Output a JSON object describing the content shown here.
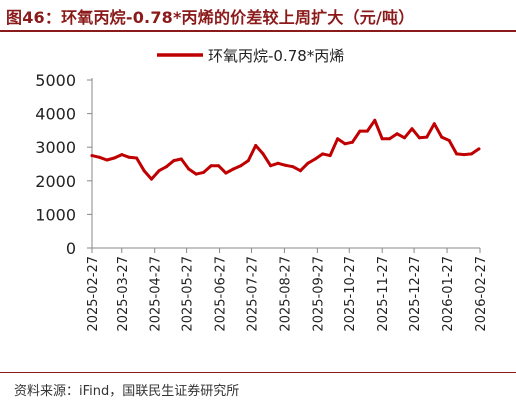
{
  "header": {
    "title": "图46：环氧丙烷-0.78*丙烯的价差较上周扩大（元/吨）"
  },
  "footer": {
    "source": "资料来源：iFind，国联民生证券研究所"
  },
  "colors": {
    "accent": "#8b1a1a",
    "series_line": "#c00000",
    "axis": "#888888"
  },
  "chart_data": {
    "type": "line",
    "title": "",
    "xlabel": "",
    "ylabel": "",
    "ylim": [
      0,
      5000
    ],
    "yticks": [
      "0",
      "1000",
      "2000",
      "3000",
      "4000",
      "5000"
    ],
    "grid": false,
    "legend_position": "top-center",
    "x_tick_labels": [
      "2025-02-27",
      "2025-03-27",
      "2025-04-27",
      "2025-05-27",
      "2025-06-27",
      "2025-07-27",
      "2025-08-27",
      "2025-09-27",
      "2025-10-27",
      "2025-11-27",
      "2025-12-27",
      "2026-01-27",
      "2026-02-27"
    ],
    "series": [
      {
        "name": "环氧丙烷-0.78*丙烯",
        "x": [
          "2025-02-27",
          "2025-03-06",
          "2025-03-13",
          "2025-03-20",
          "2025-03-27",
          "2025-04-03",
          "2025-04-10",
          "2025-04-17",
          "2025-04-24",
          "2025-05-01",
          "2025-05-08",
          "2025-05-15",
          "2025-05-22",
          "2025-05-29",
          "2025-06-05",
          "2025-06-12",
          "2025-06-19",
          "2025-06-26",
          "2025-07-03",
          "2025-07-10",
          "2025-07-17",
          "2025-07-24",
          "2025-07-31",
          "2025-08-07",
          "2025-08-14",
          "2025-08-21",
          "2025-08-28",
          "2025-09-04",
          "2025-09-11",
          "2025-09-18",
          "2025-09-25",
          "2025-10-02",
          "2025-10-09",
          "2025-10-16",
          "2025-10-23",
          "2025-10-30",
          "2025-11-06",
          "2025-11-13",
          "2025-11-20",
          "2025-11-27",
          "2025-12-04",
          "2025-12-11",
          "2025-12-18",
          "2025-12-25",
          "2026-01-01",
          "2026-01-08",
          "2026-01-15",
          "2026-01-22",
          "2026-01-29",
          "2026-02-05",
          "2026-02-12",
          "2026-02-19",
          "2026-02-26"
        ],
        "values": [
          2750,
          2700,
          2620,
          2680,
          2780,
          2700,
          2680,
          2300,
          2050,
          2300,
          2420,
          2600,
          2650,
          2350,
          2200,
          2250,
          2450,
          2450,
          2230,
          2350,
          2450,
          2600,
          3050,
          2800,
          2450,
          2520,
          2460,
          2420,
          2300,
          2520,
          2650,
          2800,
          2750,
          3250,
          3100,
          3150,
          3480,
          3480,
          3800,
          3250,
          3250,
          3400,
          3280,
          3550,
          3280,
          3300,
          3700,
          3300,
          3200,
          2800,
          2780,
          2800,
          2950
        ]
      }
    ]
  }
}
